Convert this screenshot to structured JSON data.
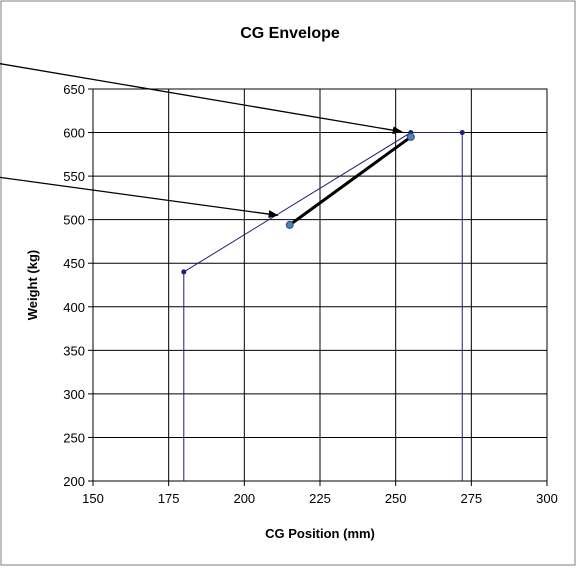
{
  "chart_data": {
    "type": "scatter",
    "title": "CG Envelope",
    "xlabel": "CG Position (mm)",
    "ylabel": "Weight (kg)",
    "xlim": [
      150,
      300
    ],
    "ylim": [
      200,
      650
    ],
    "xticks": [
      150,
      175,
      200,
      225,
      250,
      275,
      300
    ],
    "yticks": [
      200,
      250,
      300,
      350,
      400,
      450,
      500,
      550,
      600,
      650
    ],
    "grid": true,
    "legend": "none",
    "series": [
      {
        "role": "envelope",
        "style": "thin-line-with-points",
        "color": "#1f1f7a",
        "points": [
          [
            180,
            200
          ],
          [
            180,
            440
          ],
          [
            255,
            600
          ],
          [
            272,
            600
          ],
          [
            272,
            200
          ]
        ]
      },
      {
        "role": "loading",
        "style": "thick-line-with-points",
        "color": "#000000",
        "marker_color": "#4f81bd",
        "points": [
          [
            215,
            494
          ],
          [
            255,
            595
          ]
        ]
      }
    ],
    "annotations": [
      {
        "type": "arrow",
        "to": [
          252,
          601
        ]
      },
      {
        "type": "arrow",
        "to": [
          211,
          505
        ]
      }
    ]
  }
}
